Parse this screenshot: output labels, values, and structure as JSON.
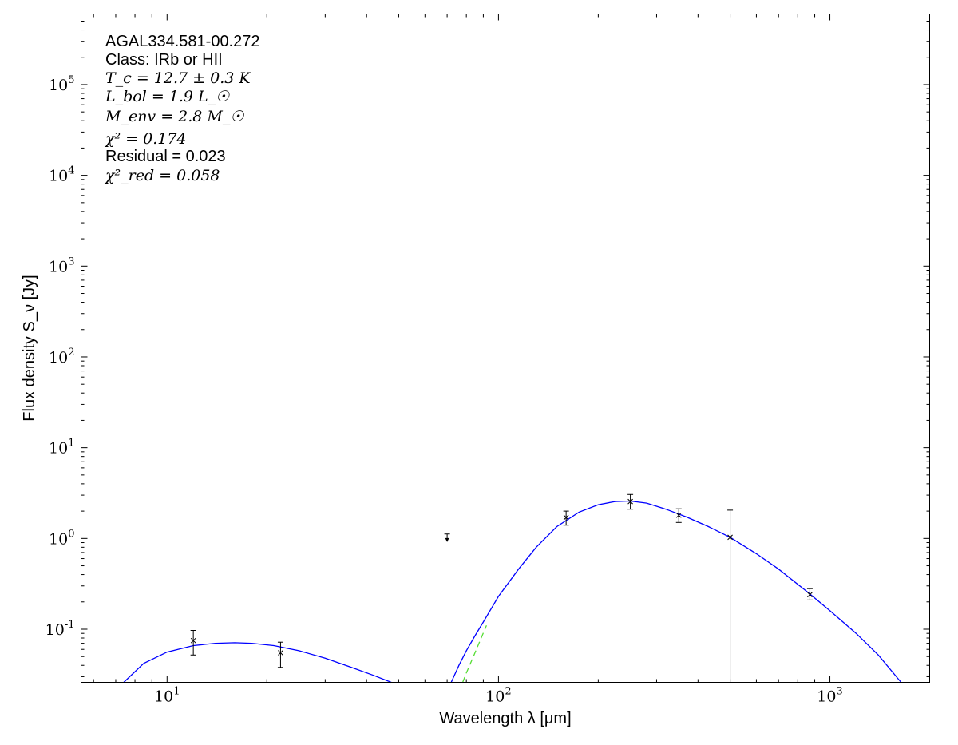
{
  "chart_data": {
    "type": "scatter",
    "title": "",
    "xlabel": "Wavelength λ [μm]",
    "ylabel": "Flux density S_ν [Jy]",
    "xscale": "log",
    "yscale": "log",
    "xlim": [
      5.5,
      2000
    ],
    "ylim": [
      0.026,
      600000
    ],
    "x_ticks": [
      {
        "value": 10,
        "label": "10^1"
      },
      {
        "value": 100,
        "label": "10^2"
      },
      {
        "value": 1000,
        "label": "10^3"
      }
    ],
    "y_ticks": [
      {
        "value": 0.1,
        "label": "10^-1"
      },
      {
        "value": 1,
        "label": "10^0"
      },
      {
        "value": 10,
        "label": "10^1"
      },
      {
        "value": 100,
        "label": "10^2"
      },
      {
        "value": 1000,
        "label": "10^3"
      },
      {
        "value": 10000,
        "label": "10^4"
      },
      {
        "value": 100000,
        "label": "10^5"
      }
    ],
    "annotations": {
      "source": "AGAL334.581-00.272",
      "class": "Class: IRb or HII",
      "tc": "T_c = 12.7 ± 0.3 K",
      "lbol": "L_bol = 1.9 L_☉",
      "menv": "M_env = 2.8 M_☉",
      "chi2": "χ² = 0.174",
      "residual": "Residual = 0.023",
      "chi2red": "χ²_red = 0.058"
    },
    "points": [
      {
        "x": 12,
        "y": 0.075,
        "yerr_low": 0.052,
        "yerr_high": 0.097,
        "upper_limit": false
      },
      {
        "x": 22,
        "y": 0.055,
        "yerr_low": 0.038,
        "yerr_high": 0.072,
        "upper_limit": false
      },
      {
        "x": 70,
        "y": 0.95,
        "yerr_low": 0.95,
        "yerr_high": 1.12,
        "upper_limit": true
      },
      {
        "x": 160,
        "y": 1.7,
        "yerr_low": 1.4,
        "yerr_high": 2.0,
        "upper_limit": false
      },
      {
        "x": 250,
        "y": 2.55,
        "yerr_low": 2.1,
        "yerr_high": 3.05,
        "upper_limit": false
      },
      {
        "x": 350,
        "y": 1.8,
        "yerr_low": 1.5,
        "yerr_high": 2.12,
        "upper_limit": false
      },
      {
        "x": 500,
        "y": 1.03,
        "yerr_low": 0.01,
        "yerr_high": 2.05,
        "upper_limit": false
      },
      {
        "x": 870,
        "y": 0.24,
        "yerr_low": 0.21,
        "yerr_high": 0.28,
        "upper_limit": false
      }
    ],
    "series": [
      {
        "style": "line",
        "color": "#0000ff",
        "x": [
          7.4,
          8.5,
          10,
          12,
          14,
          16,
          18,
          21,
          25,
          30,
          36,
          42,
          47.5
        ],
        "y": [
          0.026,
          0.042,
          0.056,
          0.066,
          0.07,
          0.071,
          0.07,
          0.066,
          0.058,
          0.048,
          0.038,
          0.031,
          0.026
        ]
      },
      {
        "style": "line",
        "color": "#0000ff",
        "x": [
          72,
          76,
          80,
          85,
          90,
          100,
          115,
          130,
          150,
          175,
          200,
          225,
          250,
          280,
          320,
          370,
          430,
          500,
          600,
          700,
          870,
          1000,
          1200,
          1400,
          1640
        ],
        "y": [
          0.026,
          0.04,
          0.058,
          0.085,
          0.12,
          0.23,
          0.46,
          0.8,
          1.35,
          1.95,
          2.35,
          2.55,
          2.58,
          2.45,
          2.1,
          1.72,
          1.35,
          1.03,
          0.68,
          0.46,
          0.245,
          0.16,
          0.09,
          0.052,
          0.026
        ]
      },
      {
        "style": "dashed",
        "color": "#55dd33",
        "x": [
          78,
          80,
          84,
          88,
          92
        ],
        "y": [
          0.026,
          0.033,
          0.05,
          0.075,
          0.11
        ]
      }
    ]
  }
}
